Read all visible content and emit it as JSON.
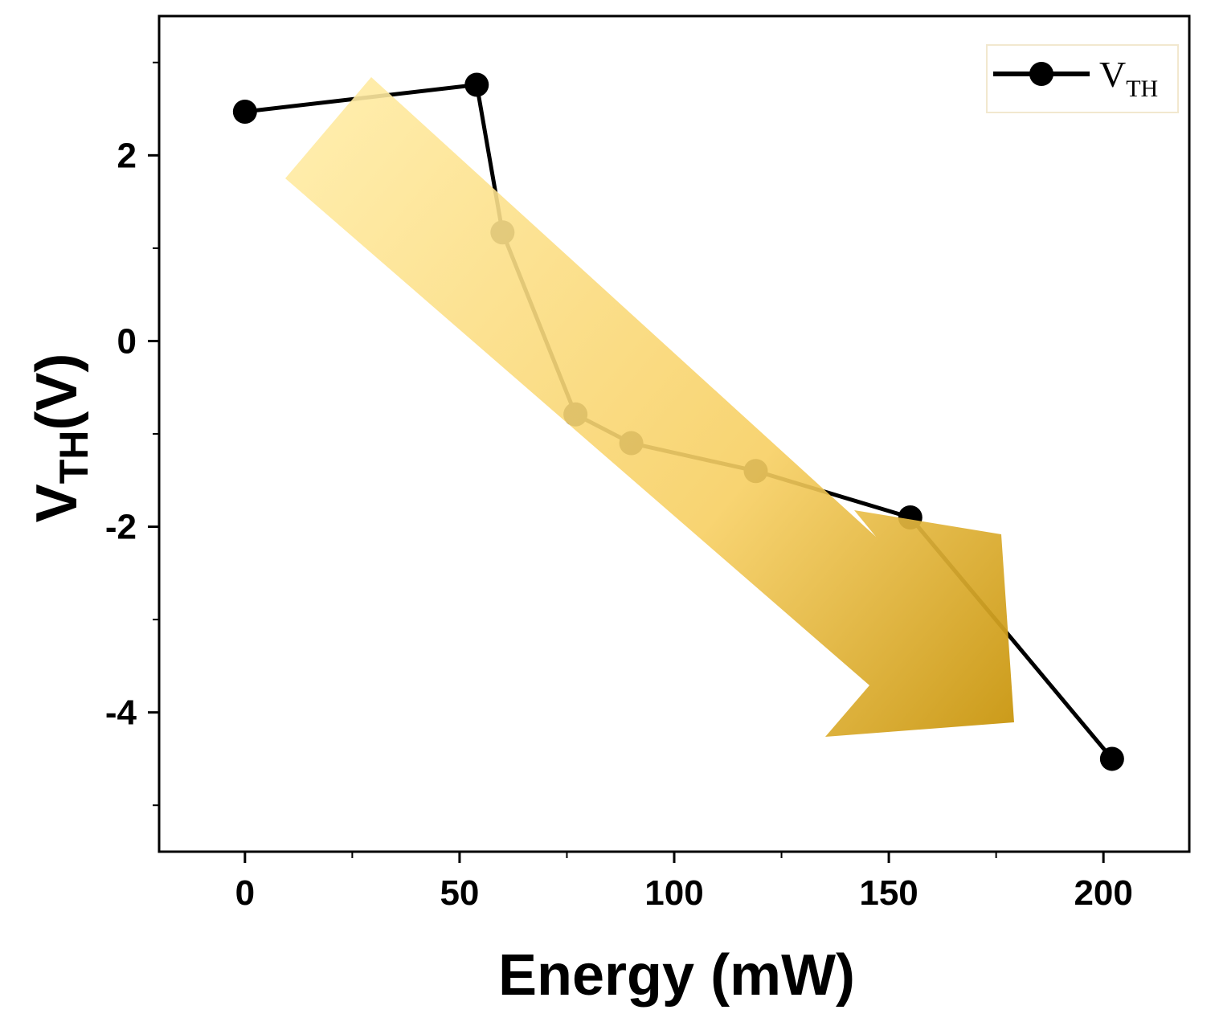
{
  "chart_data": {
    "type": "line",
    "title": "",
    "xlabel": "Energy (mW)",
    "ylabel_main": "V",
    "ylabel_sub": "TH",
    "ylabel_unit": "(V)",
    "xlim": [
      -20,
      220
    ],
    "ylim": [
      -5.5,
      3.5
    ],
    "xticks": [
      0,
      50,
      100,
      150,
      200
    ],
    "xtick_labels": [
      "0",
      "50",
      "100",
      "150",
      "200"
    ],
    "x_minor_ticks": [
      25,
      75,
      125,
      175
    ],
    "yticks": [
      2,
      0,
      -2,
      -4
    ],
    "ytick_labels": [
      "2",
      "0",
      "-2",
      "-4"
    ],
    "y_minor_ticks": [
      3,
      1,
      -1,
      -3,
      -5
    ],
    "grid": false,
    "legend": {
      "position": "top-right",
      "entries": [
        {
          "main": "V",
          "sub": "TH"
        }
      ]
    },
    "series": [
      {
        "name": "VTH",
        "color": "#000000",
        "marker": "circle",
        "x": [
          0,
          54,
          60,
          77,
          90,
          119,
          155,
          202
        ],
        "y": [
          2.47,
          2.76,
          1.17,
          -0.79,
          -1.1,
          -1.4,
          -1.9,
          -4.5
        ]
      }
    ],
    "annotation": {
      "type": "trend-arrow",
      "direction": "decreasing",
      "color_light": "#ffeaa0",
      "color_dark": "#c9960f"
    }
  }
}
